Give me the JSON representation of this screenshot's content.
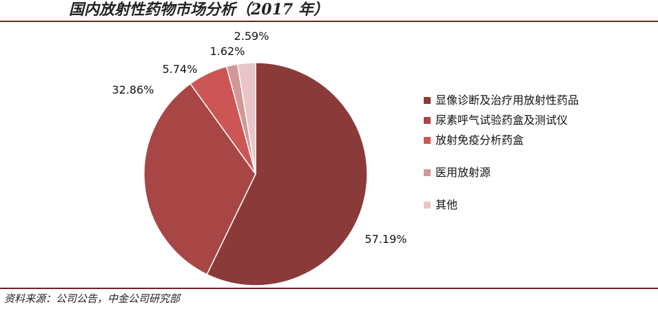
{
  "title": "国内放射性药物市场分析（2017 年）",
  "source": "资料来源：公司公告，中金公司研究部",
  "chart_data": {
    "type": "pie",
    "categories": [
      "显像诊断及治疗用放射性药品",
      "尿素呼气试验药盒及测试仪",
      "放射免疫分析药盒",
      "医用放射源",
      "其他"
    ],
    "values": [
      57.19,
      32.86,
      5.74,
      1.62,
      2.59
    ],
    "data_labels": [
      "57.19%",
      "32.86%",
      "5.74%",
      "1.62%",
      "2.59%"
    ],
    "colors": [
      "#8b3a3a",
      "#a84646",
      "#cc5656",
      "#d29898",
      "#e9c5c7"
    ],
    "legend_placement": "right"
  }
}
